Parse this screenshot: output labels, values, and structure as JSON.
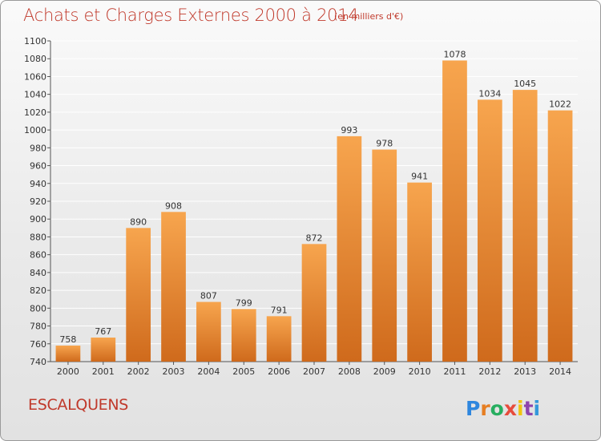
{
  "header": {
    "title": "Achats et Charges Externes 2000 à 2014",
    "unit": "(en milliers d'€)"
  },
  "footer": {
    "commune": "ESCALQUENS",
    "logo_text": "Proxiti"
  },
  "colors": {
    "bar_light": "#f7a54e",
    "bar_dark": "#cf6a1c",
    "grid": "#ffffff",
    "title": "#c0392b",
    "logo_letters": [
      "#2e86de",
      "#e67e22",
      "#27ae60",
      "#e74c3c",
      "#f1c40f",
      "#8e44ad",
      "#3498db"
    ]
  },
  "chart_data": {
    "type": "bar",
    "title": "Achats et Charges Externes 2000 à 2014",
    "subtitle": "(en milliers d'€)",
    "categories": [
      "2000",
      "2001",
      "2002",
      "2003",
      "2004",
      "2005",
      "2006",
      "2007",
      "2008",
      "2009",
      "2010",
      "2011",
      "2012",
      "2013",
      "2014"
    ],
    "values": [
      758,
      767,
      890,
      908,
      807,
      799,
      791,
      872,
      993,
      978,
      941,
      1078,
      1034,
      1045,
      1022
    ],
    "ylim": [
      740,
      1100
    ],
    "yticks": [
      740,
      760,
      780,
      800,
      820,
      840,
      860,
      880,
      900,
      920,
      940,
      960,
      980,
      1000,
      1020,
      1040,
      1060,
      1080,
      1100
    ],
    "grid": true,
    "legend": "none"
  }
}
